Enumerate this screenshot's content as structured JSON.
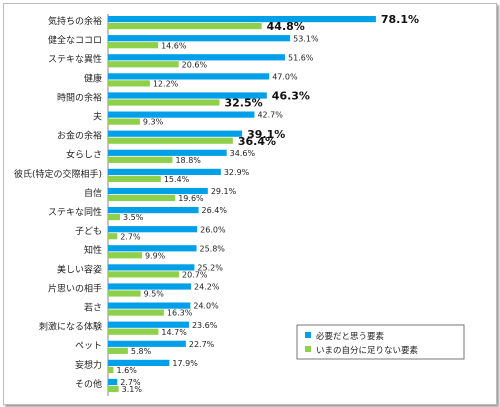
{
  "chart_data": {
    "type": "bar",
    "orientation": "horizontal",
    "categories": [
      "気持ちの余裕",
      "健全なココロ",
      "ステキな異性",
      "健康",
      "時間の余裕",
      "夫",
      "お金の余裕",
      "女らしさ",
      "彼氏(特定の交際相手)",
      "自信",
      "ステキな同性",
      "子ども",
      "知性",
      "美しい容姿",
      "片思いの相手",
      "若さ",
      "刺激になる体験",
      "ペット",
      "妄想力",
      "その他"
    ],
    "series": [
      {
        "name": "必要だと思う要素",
        "color": "#00a0e9",
        "values": [
          78.1,
          53.1,
          51.6,
          47.0,
          46.3,
          42.7,
          39.1,
          34.6,
          32.9,
          29.1,
          26.4,
          26.0,
          25.8,
          25.2,
          24.2,
          24.0,
          23.6,
          22.7,
          17.9,
          2.7
        ],
        "labels": [
          "78.1%",
          "53.1%",
          "51.6%",
          "47.0%",
          "46.3%",
          "42.7%",
          "39.1%",
          "34.6%",
          "32.9%",
          "29.1%",
          "26.4%",
          "26.0%",
          "25.8%",
          "25.2%",
          "24.2%",
          "24.0%",
          "23.6%",
          "22.7%",
          "17.9%",
          "2.7%"
        ]
      },
      {
        "name": "いまの自分に足りない要素",
        "color": "#8ed04b",
        "values": [
          44.8,
          14.6,
          20.6,
          12.2,
          32.5,
          9.3,
          36.4,
          18.8,
          15.4,
          19.6,
          3.5,
          2.7,
          9.9,
          20.7,
          9.5,
          16.3,
          14.7,
          5.8,
          1.6,
          3.1
        ],
        "labels": [
          "44.8%",
          "14.6%",
          "20.6%",
          "12.2%",
          "32.5%",
          "9.3%",
          "36.4%",
          "18.8%",
          "15.4%",
          "19.6%",
          "3.5%",
          "2.7%",
          "9.9%",
          "20.7%",
          "9.5%",
          "16.3%",
          "14.7%",
          "5.8%",
          "1.6%",
          "3.1%"
        ]
      }
    ],
    "emphasized_indices": [
      0,
      4,
      6
    ],
    "xlim": [
      0,
      100
    ],
    "grid": false,
    "legend_position": "bottom-right"
  }
}
